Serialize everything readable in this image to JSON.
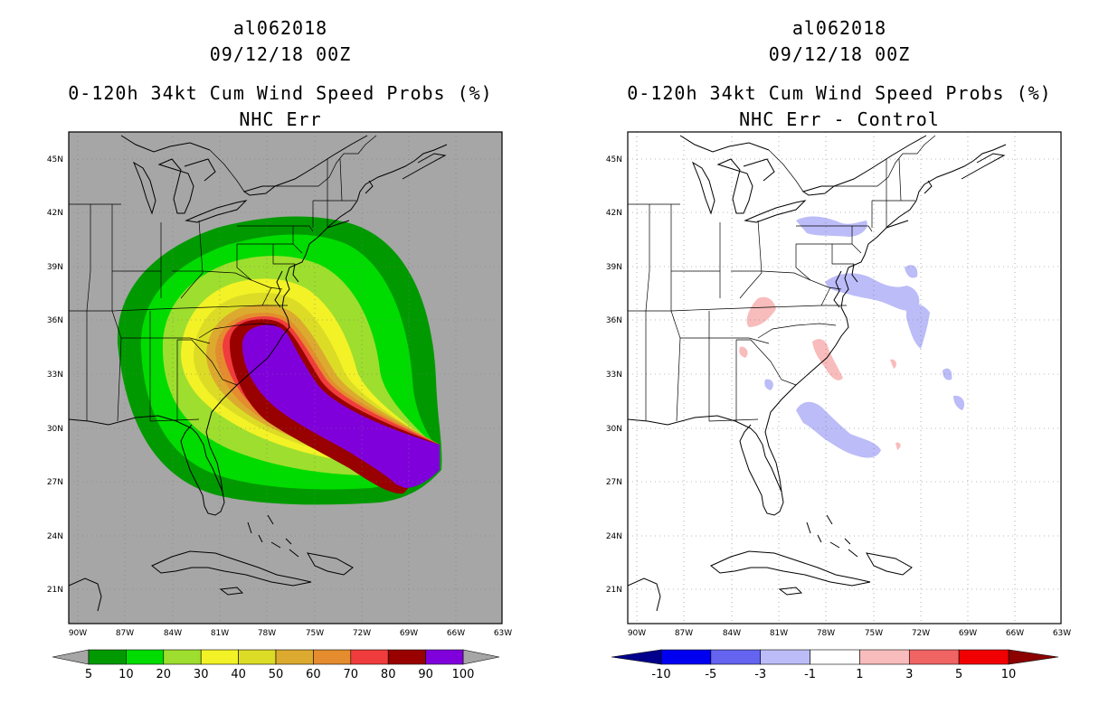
{
  "left_panel": {
    "storm_id": "al062018",
    "datetime": "09/12/18 00Z",
    "product": "0-120h 34kt Cum Wind Speed Probs (%)",
    "subtitle": "NHC Err",
    "background_color": "#a6a6a6",
    "colorbar": {
      "labels": [
        "5",
        "10",
        "20",
        "30",
        "40",
        "50",
        "60",
        "70",
        "80",
        "90",
        "100"
      ],
      "colors": [
        "#009a00",
        "#00dc00",
        "#9ede2e",
        "#f2f226",
        "#dcdc26",
        "#dcaa2e",
        "#e48c2e",
        "#f03c3c",
        "#990000",
        "#8000dc"
      ]
    }
  },
  "right_panel": {
    "storm_id": "al062018",
    "datetime": "09/12/18 00Z",
    "product": "0-120h 34kt Cum Wind Speed Probs (%)",
    "subtitle": "NHC Err - Control",
    "background_color": "#ffffff",
    "colorbar": {
      "labels": [
        "-10",
        "-5",
        "-3",
        "-1",
        "1",
        "3",
        "5",
        "10"
      ],
      "colors": [
        "#00008c",
        "#0000f0",
        "#6464f0",
        "#bcbcf8",
        "#ffffff",
        "#f8bcbc",
        "#f06464",
        "#f00000",
        "#8c0000"
      ]
    }
  },
  "map": {
    "lon_labels": [
      "90W",
      "87W",
      "84W",
      "81W",
      "78W",
      "75W",
      "72W",
      "69W",
      "66W",
      "63W"
    ],
    "lat_labels": [
      "45N",
      "42N",
      "39N",
      "36N",
      "33N",
      "30N",
      "27N",
      "24N",
      "21N"
    ]
  }
}
